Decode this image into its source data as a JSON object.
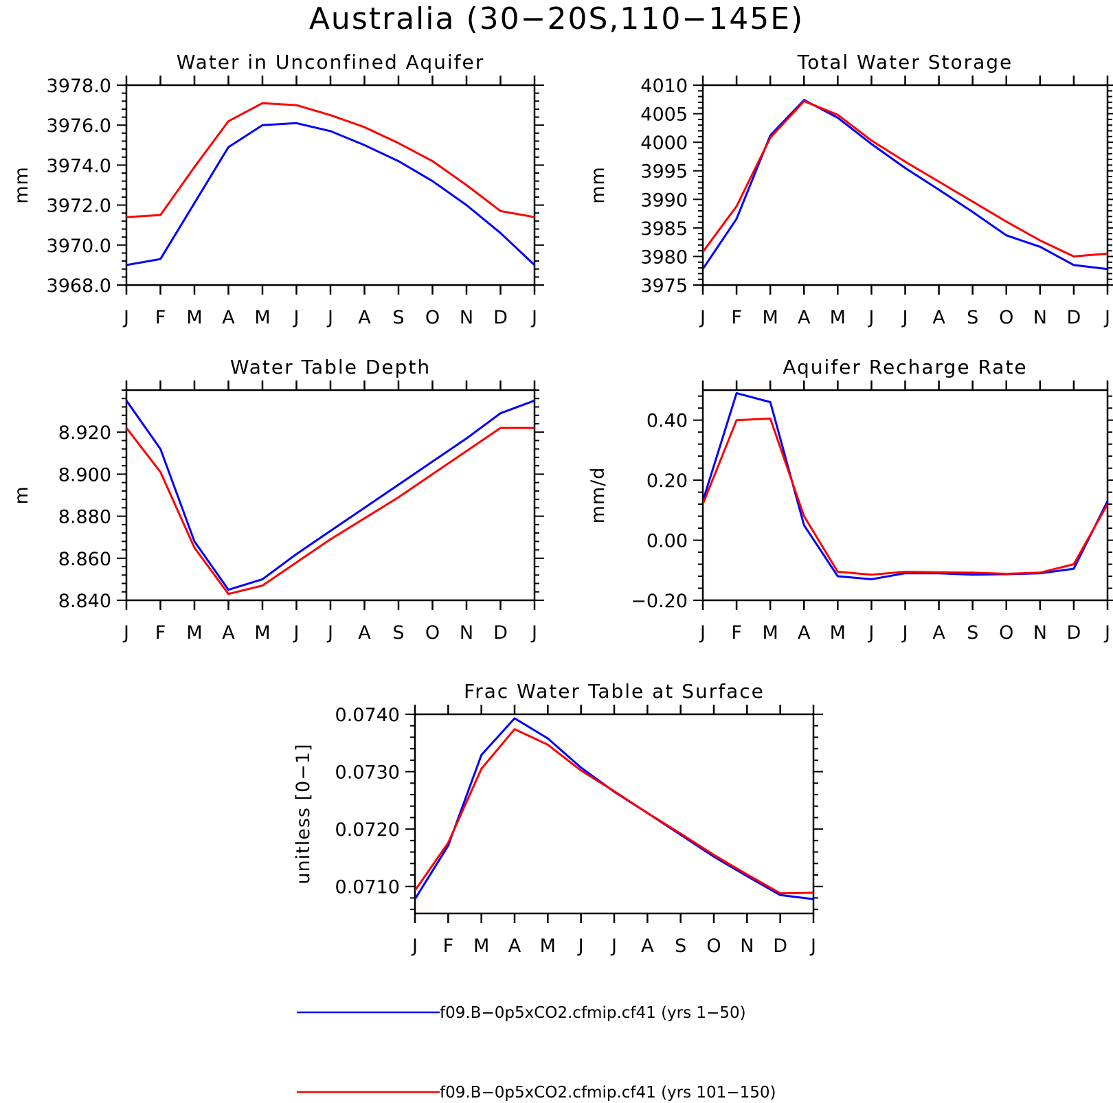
{
  "figure_title": "Australia (30−20S,110−145E)",
  "colors": {
    "series_1": "#0000ff",
    "series_2": "#ff0000",
    "axes": "#000000"
  },
  "legend": [
    {
      "label": "f09.B−0p5xCO2.cfmip.cf41 (yrs 1−50)",
      "color": "#0000ff"
    },
    {
      "label": "f09.B−0p5xCO2.cfmip.cf41 (yrs 101−150)",
      "color": "#ff0000"
    }
  ],
  "chart_data": [
    {
      "type": "line",
      "title": "Water in Unconfined Aquifer",
      "ylabel": "mm",
      "xlabel": "",
      "ylim": [
        3968.0,
        3978.0
      ],
      "yticks": [
        3968.0,
        3970.0,
        3972.0,
        3974.0,
        3976.0,
        3978.0
      ],
      "ytick_labels": [
        "3968.0",
        "3970.0",
        "3972.0",
        "3974.0",
        "3976.0",
        "3978.0"
      ],
      "x": [
        "J",
        "F",
        "M",
        "A",
        "M",
        "J",
        "J",
        "A",
        "S",
        "O",
        "N",
        "D",
        "J"
      ],
      "series": [
        {
          "color": "#0000ff",
          "values": [
            3969.0,
            3969.3,
            3972.1,
            3974.9,
            3976.0,
            3976.1,
            3975.7,
            3975.0,
            3974.2,
            3973.2,
            3972.0,
            3970.6,
            3969.0
          ]
        },
        {
          "color": "#ff0000",
          "values": [
            3971.4,
            3971.5,
            3973.9,
            3976.2,
            3977.1,
            3977.0,
            3976.5,
            3975.9,
            3975.1,
            3974.2,
            3973.0,
            3971.7,
            3971.4
          ]
        }
      ]
    },
    {
      "type": "line",
      "title": "Total Water Storage",
      "ylabel": "mm",
      "xlabel": "",
      "ylim": [
        3975,
        4010
      ],
      "yticks": [
        3975,
        3980,
        3985,
        3990,
        3995,
        4000,
        4005,
        4010
      ],
      "ytick_labels": [
        "3975",
        "3980",
        "3985",
        "3990",
        "3995",
        "4000",
        "4005",
        "4010"
      ],
      "x": [
        "J",
        "F",
        "M",
        "A",
        "M",
        "J",
        "J",
        "A",
        "S",
        "O",
        "N",
        "D",
        "J"
      ],
      "series": [
        {
          "color": "#0000ff",
          "values": [
            3977.8,
            3986.6,
            4001.2,
            4007.4,
            4004.3,
            3999.7,
            3995.5,
            3991.7,
            3987.8,
            3983.7,
            3981.7,
            3978.5,
            3977.8
          ]
        },
        {
          "color": "#ff0000",
          "values": [
            3980.8,
            3988.8,
            4000.8,
            4007.2,
            4004.8,
            4000.3,
            3996.6,
            3993.1,
            3989.6,
            3986.1,
            3982.8,
            3980.0,
            3980.5
          ]
        }
      ]
    },
    {
      "type": "line",
      "title": "Water Table Depth",
      "ylabel": "m",
      "xlabel": "",
      "ylim": [
        8.84,
        8.94
      ],
      "yticks": [
        8.84,
        8.86,
        8.88,
        8.9,
        8.92
      ],
      "ytick_labels": [
        "8.840",
        "8.860",
        "8.880",
        "8.900",
        "8.920"
      ],
      "x": [
        "J",
        "F",
        "M",
        "A",
        "M",
        "J",
        "J",
        "A",
        "S",
        "O",
        "N",
        "D",
        "J"
      ],
      "series": [
        {
          "color": "#0000ff",
          "values": [
            8.935,
            8.912,
            8.868,
            8.845,
            8.85,
            8.862,
            8.873,
            8.884,
            8.895,
            8.906,
            8.917,
            8.929,
            8.935
          ]
        },
        {
          "color": "#ff0000",
          "values": [
            8.922,
            8.901,
            8.865,
            8.843,
            8.847,
            8.858,
            8.869,
            8.879,
            8.889,
            8.9,
            8.911,
            8.922,
            8.922
          ]
        }
      ]
    },
    {
      "type": "line",
      "title": "Aquifer Recharge Rate",
      "ylabel": "mm/d",
      "xlabel": "",
      "ylim": [
        -0.2,
        0.5
      ],
      "yticks": [
        -0.2,
        0.0,
        0.2,
        0.4
      ],
      "ytick_labels": [
        "−0.20",
        "0.00",
        "0.20",
        "0.40"
      ],
      "x": [
        "J",
        "F",
        "M",
        "A",
        "M",
        "J",
        "J",
        "A",
        "S",
        "O",
        "N",
        "D",
        "J"
      ],
      "series": [
        {
          "color": "#0000ff",
          "values": [
            0.13,
            0.49,
            0.46,
            0.05,
            -0.12,
            -0.13,
            -0.11,
            -0.11,
            -0.115,
            -0.113,
            -0.11,
            -0.095,
            0.13
          ]
        },
        {
          "color": "#ff0000",
          "values": [
            0.12,
            0.4,
            0.405,
            0.08,
            -0.105,
            -0.115,
            -0.105,
            -0.107,
            -0.108,
            -0.112,
            -0.108,
            -0.08,
            0.12
          ]
        }
      ]
    },
    {
      "type": "line",
      "title": "Frac Water Table at Surface",
      "ylabel": "unitless [0−1]",
      "xlabel": "",
      "ylim": [
        0.07053,
        0.074
      ],
      "yticks": [
        0.071,
        0.072,
        0.073,
        0.074
      ],
      "ytick_labels": [
        "0.0710",
        "0.0720",
        "0.0730",
        "0.0740"
      ],
      "x": [
        "J",
        "F",
        "M",
        "A",
        "M",
        "J",
        "J",
        "A",
        "S",
        "O",
        "N",
        "D",
        "J"
      ],
      "series": [
        {
          "color": "#0000ff",
          "values": [
            0.07078,
            0.07171,
            0.07329,
            0.07393,
            0.07358,
            0.07307,
            0.07265,
            0.07228,
            0.0719,
            0.07152,
            0.07118,
            0.07085,
            0.07078
          ]
        },
        {
          "color": "#ff0000",
          "values": [
            0.07093,
            0.07176,
            0.07305,
            0.07374,
            0.07347,
            0.07302,
            0.07266,
            0.07228,
            0.07192,
            0.07155,
            0.07121,
            0.07088,
            0.07089
          ]
        }
      ]
    }
  ]
}
